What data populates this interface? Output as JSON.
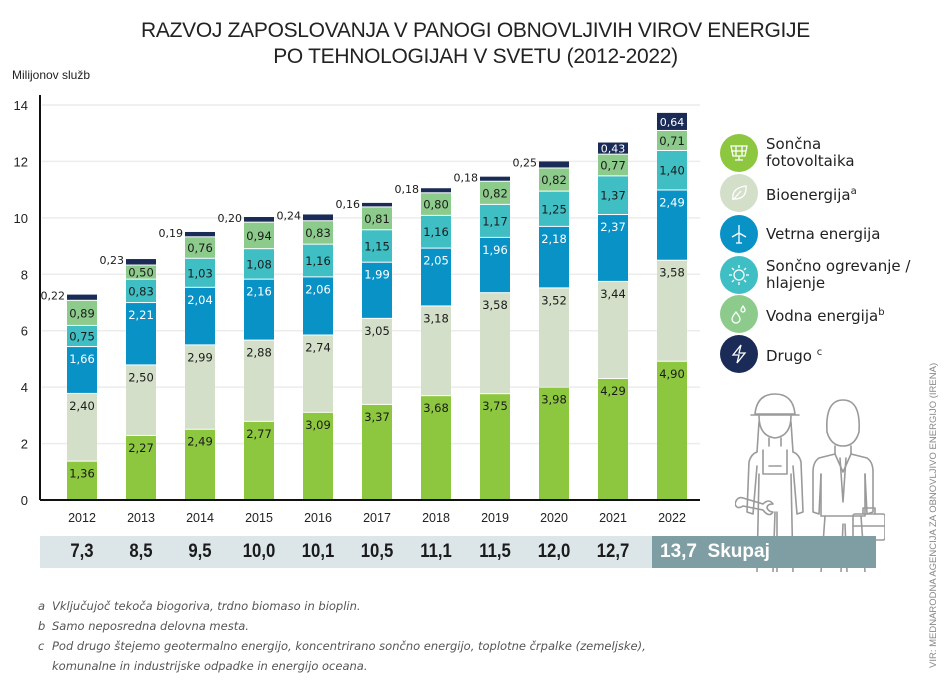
{
  "title_line1": "RAZVOJ ZAPOSLOVANJA V PANOGI OBNOVLJIVIH VIROV ENERGIJE",
  "title_line2": "PO TEHNOLOGIJAH V SVETU (2012-2022)",
  "chart_data": {
    "type": "bar",
    "stacked": true,
    "title": "RAZVOJ ZAPOSLOVANJA V PANOGI OBNOVLJIVIH VIROV ENERGIJE PO TEHNOLOGIJAH V SVETU (2012-2022)",
    "xlabel": "",
    "ylabel": "Milijonov služb",
    "ylim": [
      0,
      14
    ],
    "yticks": [
      0,
      2,
      4,
      6,
      8,
      10,
      12,
      14
    ],
    "grid": true,
    "legend_position": "right",
    "categories": [
      "2012",
      "2013",
      "2014",
      "2015",
      "2016",
      "2017",
      "2018",
      "2019",
      "2020",
      "2021",
      "2022"
    ],
    "series": [
      {
        "name": "Sončna fotovoltaika",
        "color": "#8dc63f",
        "label_color": "#1b1b1b",
        "values": [
          1.36,
          2.27,
          2.49,
          2.77,
          3.09,
          3.37,
          3.68,
          3.75,
          3.98,
          4.29,
          4.9
        ]
      },
      {
        "name": "Bioenergija",
        "color": "#d3dfc8",
        "label_color": "#1b1b1b",
        "values": [
          2.4,
          2.5,
          2.99,
          2.88,
          2.74,
          3.05,
          3.18,
          3.58,
          3.52,
          3.44,
          3.58
        ]
      },
      {
        "name": "Vetrna energija",
        "color": "#0992c6",
        "label_color": "#ffffff",
        "values": [
          1.66,
          2.21,
          2.04,
          2.16,
          2.06,
          1.99,
          2.05,
          1.96,
          2.18,
          2.37,
          2.49
        ]
      },
      {
        "name": "Sončno ogrevanje / hlajenje",
        "color": "#3fbfc4",
        "label_color": "#1b1b1b",
        "values": [
          0.75,
          0.83,
          1.03,
          1.08,
          1.16,
          1.15,
          1.16,
          1.17,
          1.25,
          1.37,
          1.4
        ]
      },
      {
        "name": "Vodna energija",
        "color": "#8ccb8b",
        "label_color": "#1b1b1b",
        "values": [
          0.89,
          0.5,
          0.76,
          0.94,
          0.83,
          0.81,
          0.8,
          0.82,
          0.82,
          0.77,
          0.71
        ]
      },
      {
        "name": "Drugo",
        "color": "#1a2b57",
        "label_color": "#ffffff",
        "values": [
          0.22,
          0.23,
          0.19,
          0.2,
          0.24,
          0.16,
          0.18,
          0.18,
          0.25,
          0.43,
          0.64
        ]
      }
    ],
    "value_labels": [
      [
        "1,36",
        "2,27",
        "2,49",
        "2,77",
        "3,09",
        "3,37",
        "3,68",
        "3,75",
        "3,98",
        "4,29",
        "4,90"
      ],
      [
        "2,40",
        "2,50",
        "2,99",
        "2,88",
        "2,74",
        "3,05",
        "3,18",
        "3,58",
        "3,52",
        "3,44",
        "3,58"
      ],
      [
        "1,66",
        "2,21",
        "2,04",
        "2,16",
        "2,06",
        "1,99",
        "2,05",
        "1,96",
        "2,18",
        "2,37",
        "2,49"
      ],
      [
        "0,75",
        "0,83",
        "1,03",
        "1,08",
        "1,16",
        "1,15",
        "1,16",
        "1,17",
        "1,25",
        "1,37",
        "1,40"
      ],
      [
        "0,89",
        "0,50",
        "0,76",
        "0,94",
        "0,83",
        "0,81",
        "0,80",
        "0,82",
        "0,82",
        "0,77",
        "0,71"
      ],
      [
        "0,22",
        "0,23",
        "0,19",
        "0,20",
        "0,24",
        "0,16",
        "0,18",
        "0,18",
        "0,25",
        "0,43",
        "0,64"
      ]
    ],
    "totals": [
      "7,3",
      "8,5",
      "9,5",
      "10,0",
      "10,1",
      "10,5",
      "11,1",
      "11,5",
      "12,0",
      "12,7",
      "13,7"
    ],
    "totals_label": "Skupaj"
  },
  "legend": [
    {
      "label": "Sončna\nfotovoltaika",
      "sup": "",
      "icon": "solar-panel-icon",
      "color": "#8dc63f"
    },
    {
      "label": "Bioenergija",
      "sup": "a",
      "icon": "leaf-icon",
      "color": "#d3dfc8"
    },
    {
      "label": "Vetrna energija",
      "sup": "",
      "icon": "wind-turbine-icon",
      "color": "#0992c6"
    },
    {
      "label": "Sončno ogrevanje /\nhlajenje",
      "sup": "",
      "icon": "sun-icon",
      "color": "#3fbfc4"
    },
    {
      "label": "Vodna energija",
      "sup": "b",
      "icon": "water-drops-icon",
      "color": "#8ccb8b"
    },
    {
      "label": "Drugo ",
      "sup": "c",
      "icon": "lightning-icon",
      "color": "#1a2b57"
    }
  ],
  "notes": [
    {
      "key": "a",
      "text": "Vključujoč tekoča biogoriva, trdno biomaso in bioplin."
    },
    {
      "key": "b",
      "text": "Samo neposredna delovna mesta."
    },
    {
      "key": "c",
      "text": "Pod drugo štejemo geotermalno energijo, koncentrirano sončno energijo, toplotne črpalke (zemeljske),"
    },
    {
      "key": "",
      "text": "komunalne in industrijske odpadke in energijo oceana."
    }
  ],
  "source": "VIR: MEDNARODNA AGENCIJA ZA OBNOVLJIVO ENERGIJO (IRENA)",
  "illustration": "workers-illustration"
}
